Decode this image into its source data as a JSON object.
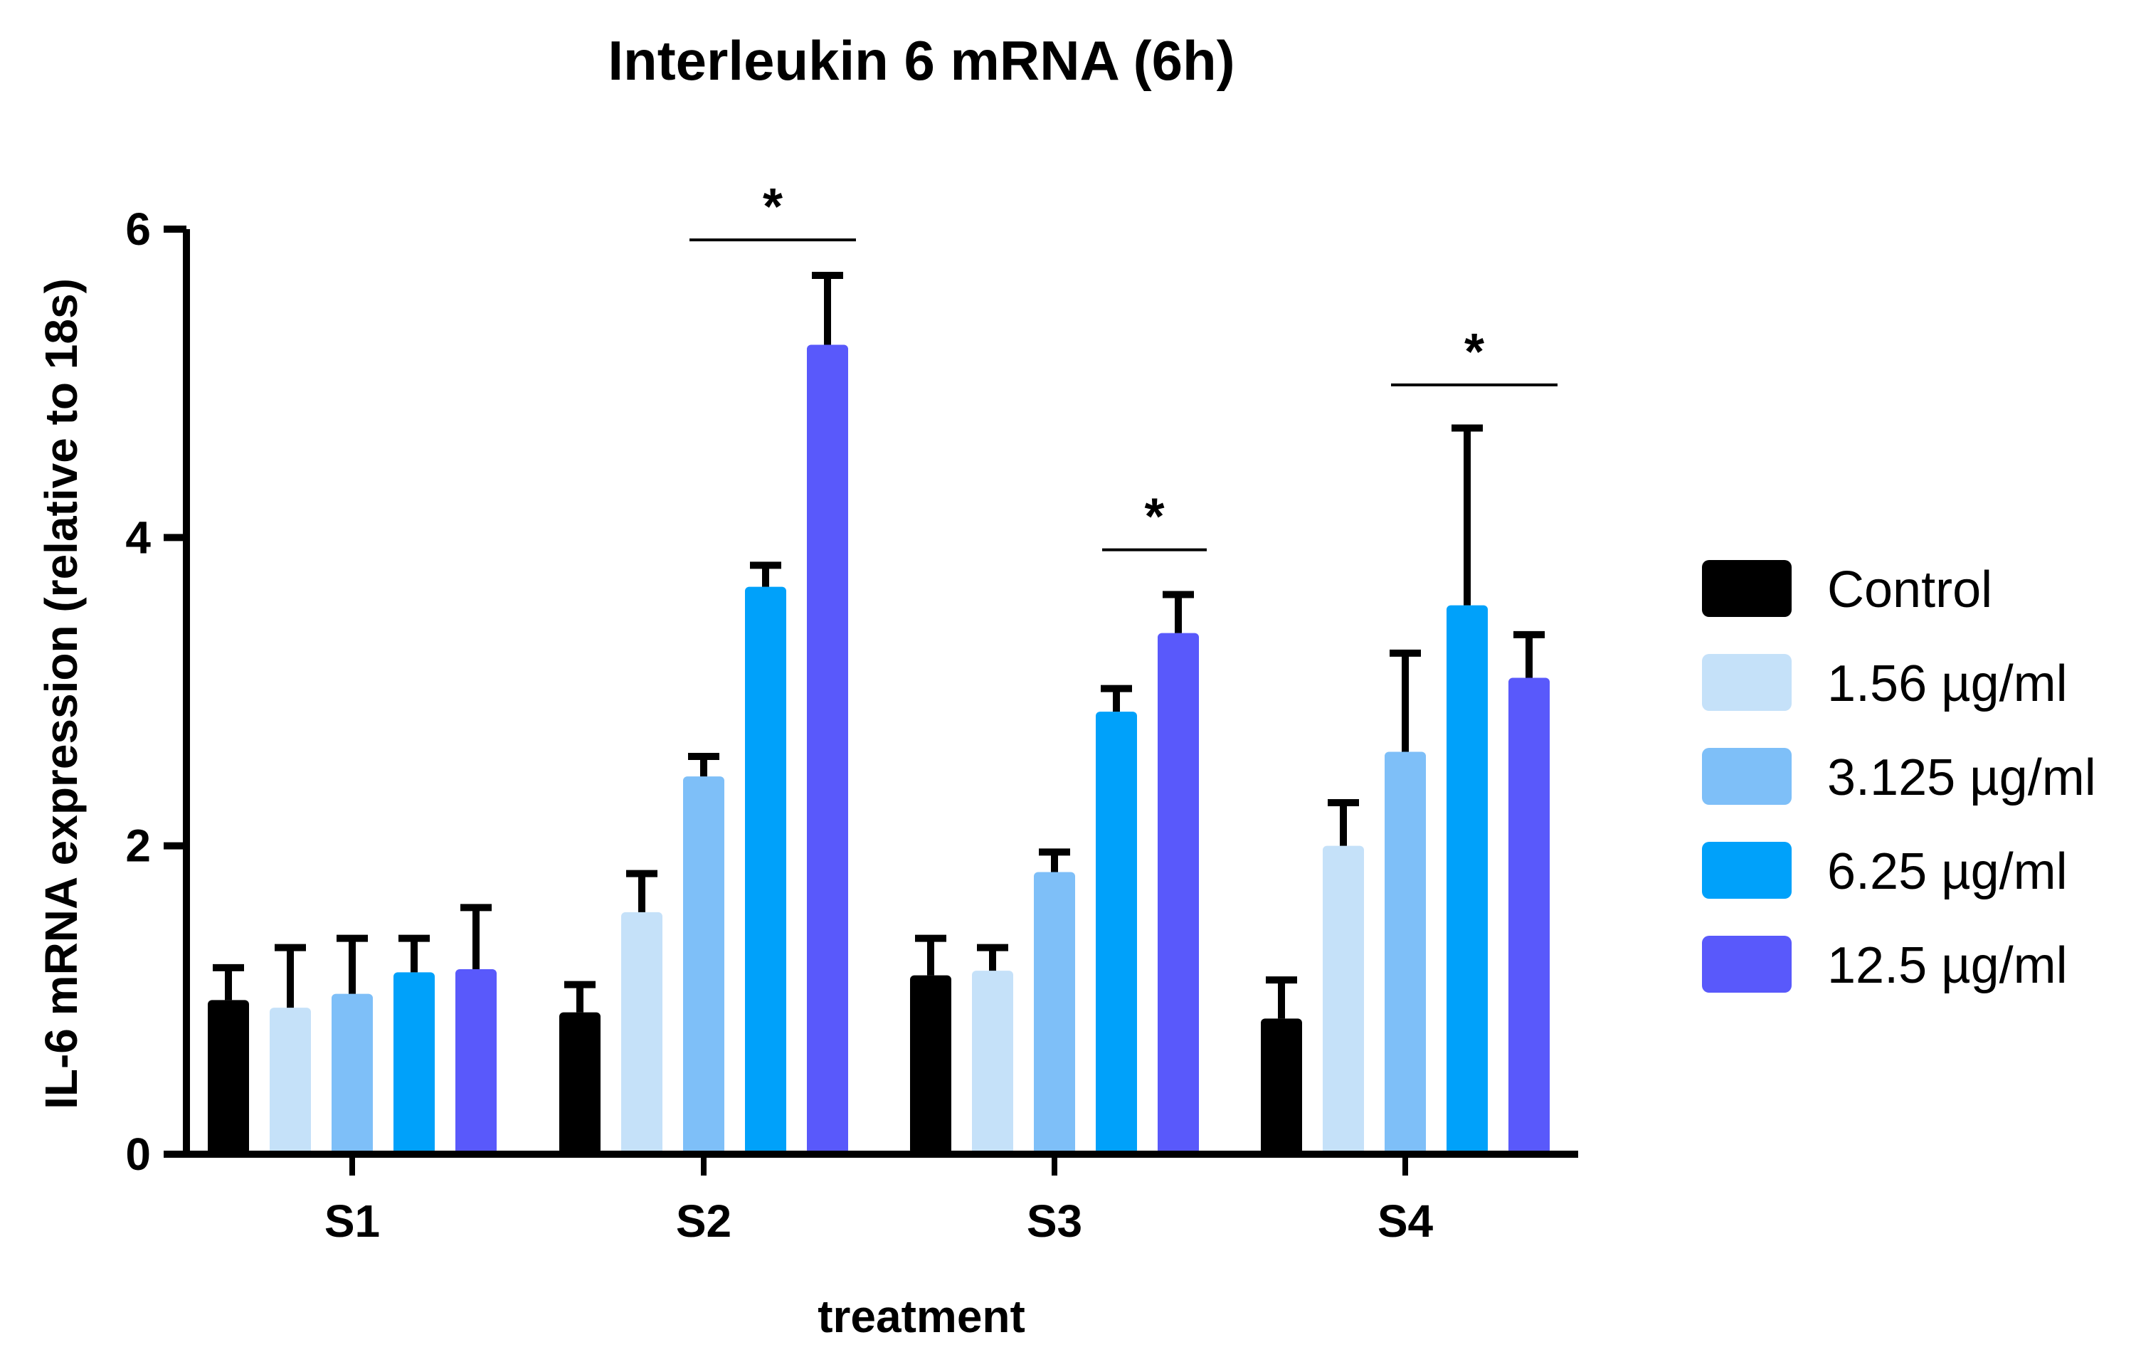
{
  "chart_data": {
    "type": "bar",
    "title": "Interleukin 6 mRNA (6h)",
    "xlabel": "treatment",
    "ylabel": "IL-6 mRNA expression (relative to 18s)",
    "ylim": [
      0,
      6
    ],
    "yticks": [
      0,
      2,
      4,
      6
    ],
    "grid": false,
    "legend_position": "right",
    "categories": [
      "S1",
      "S2",
      "S3",
      "S4"
    ],
    "series": [
      {
        "name": "Control",
        "color": "#000000",
        "values": [
          1.0,
          0.92,
          1.16,
          0.88
        ],
        "errors": [
          0.21,
          0.18,
          0.24,
          0.25
        ]
      },
      {
        "name": "1.56 µg/ml",
        "color": "#c5e1f9",
        "values": [
          0.95,
          1.57,
          1.19,
          2.0
        ],
        "errors": [
          0.39,
          0.25,
          0.15,
          0.28
        ]
      },
      {
        "name": "3.125 µg/ml",
        "color": "#7ebff8",
        "values": [
          1.04,
          2.45,
          1.83,
          2.61
        ],
        "errors": [
          0.36,
          0.13,
          0.13,
          0.64
        ]
      },
      {
        "name": "6.25 µg/ml",
        "color": "#00a1fa",
        "values": [
          1.18,
          3.68,
          2.87,
          3.56
        ],
        "errors": [
          0.22,
          0.14,
          0.15,
          1.15
        ]
      },
      {
        "name": "12.5 µg/ml",
        "color": "#5959fb",
        "values": [
          1.2,
          5.25,
          3.38,
          3.09
        ],
        "errors": [
          0.4,
          0.45,
          0.25,
          0.28
        ]
      }
    ],
    "significance": [
      {
        "category": "S2",
        "from_series": 2,
        "to_series": 4,
        "bar_y": 5.93,
        "label": "*"
      },
      {
        "category": "S3",
        "from_series": 3,
        "to_series": 4,
        "bar_y": 3.92,
        "label": "*"
      },
      {
        "category": "S4",
        "from_series": 2,
        "to_series": 4,
        "bar_y": 4.99,
        "label": "*"
      }
    ]
  }
}
